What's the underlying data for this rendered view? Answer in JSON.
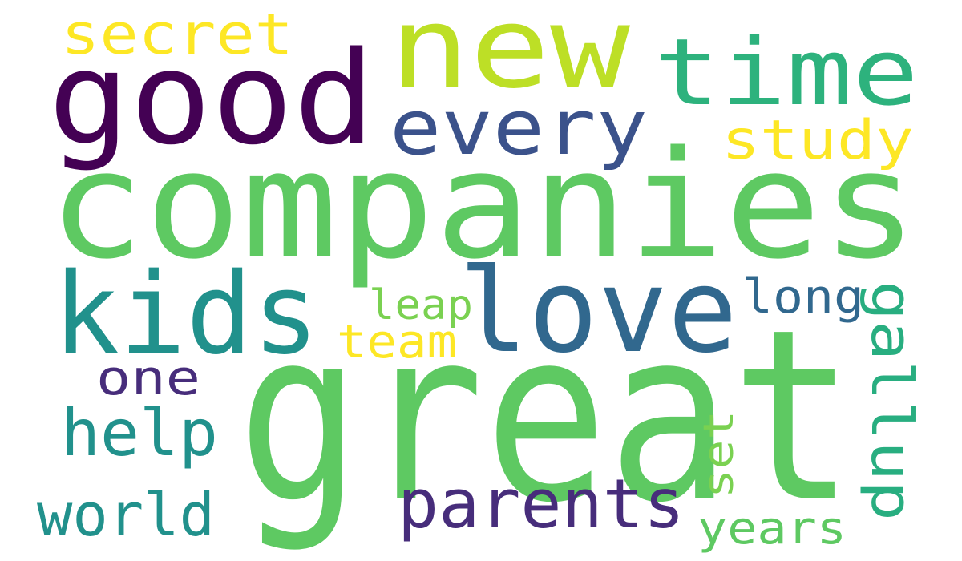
{
  "words": [
    {
      "text": "great",
      "color": "#5ec962"
    },
    {
      "text": "companies",
      "color": "#5ec962"
    },
    {
      "text": "good",
      "color": "#440154"
    },
    {
      "text": "new",
      "color": "#bddf26"
    },
    {
      "text": "love",
      "color": "#31688e"
    },
    {
      "text": "kids",
      "color": "#21918c"
    },
    {
      "text": "time",
      "color": "#2db27d"
    },
    {
      "text": "every",
      "color": "#3b528b"
    },
    {
      "text": "parents",
      "color": "#472d7b"
    },
    {
      "text": "secret",
      "color": "#fde725"
    },
    {
      "text": "study",
      "color": "#fde725"
    },
    {
      "text": "help",
      "color": "#21918c"
    },
    {
      "text": "world",
      "color": "#21918c"
    },
    {
      "text": "gallup",
      "color": "#28ae80"
    },
    {
      "text": "one",
      "color": "#472d7b"
    },
    {
      "text": "long",
      "color": "#31688e"
    },
    {
      "text": "team",
      "color": "#fde725"
    },
    {
      "text": "leap",
      "color": "#7ad151"
    },
    {
      "text": "years",
      "color": "#5ec962"
    },
    {
      "text": "set",
      "color": "#7ad151"
    }
  ]
}
